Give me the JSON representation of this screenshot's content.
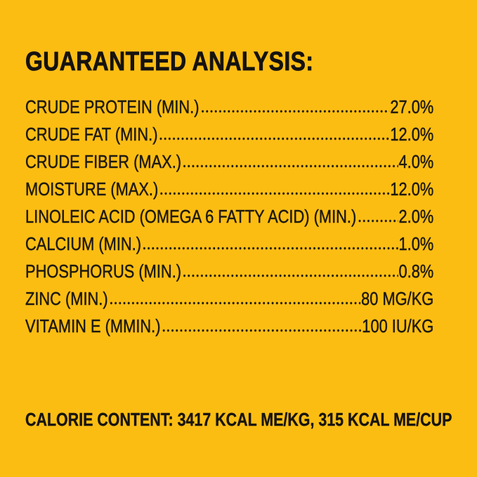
{
  "page": {
    "background_color": "#FCBD13",
    "ink_color": "#1E1A10"
  },
  "title": "GUARANTEED ANALYSIS:",
  "analysis": {
    "rows": [
      {
        "label": "CRUDE PROTEIN (MIN.)",
        "value": "27.0%"
      },
      {
        "label": "CRUDE FAT (MIN.)",
        "value": "12.0%"
      },
      {
        "label": "CRUDE FIBER (MAX.)",
        "value": "4.0%"
      },
      {
        "label": "MOISTURE (MAX.)",
        "value": "12.0%"
      },
      {
        "label": "LINOLEIC ACID (OMEGA 6 FATTY ACID) (MIN.)",
        "value": "2.0%"
      },
      {
        "label": "CALCIUM (MIN.)",
        "value": "1.0%"
      },
      {
        "label": "PHOSPHORUS (MIN.)",
        "value": "0.8%"
      },
      {
        "label": "ZINC (MIN.)",
        "value": "80 MG/KG"
      },
      {
        "label": "VITAMIN E (MMIN.)",
        "value": "100 IU/KG"
      }
    ]
  },
  "footer": {
    "calorie_content": "CALORIE CONTENT: 3417 KCAL ME/KG, 315 KCAL ME/CUP"
  }
}
